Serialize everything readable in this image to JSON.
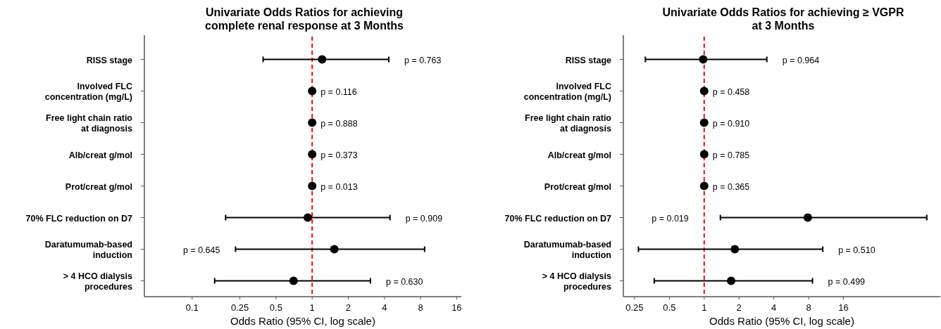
{
  "chart_data": [
    {
      "type": "scatter",
      "orientation": "horizontal",
      "title": "Univariate Odds Ratios for achieving\ncomplete renal response at 3 Months",
      "xlabel": "Odds Ratio (95% CI, log scale)",
      "categories": [
        "RISS stage",
        "Involved FLC\nconcentration (mg/L)",
        "Free light chain ratio\nat diagnosis",
        "Alb/creat g/mol",
        "Prot/creat g/mol",
        "70% FLC reduction on D7",
        "Daratumumab-based\ninduction",
        "> 4 HCO dialysis\nprocedures"
      ],
      "series": [
        {
          "color": "#000000",
          "values": [
            1.21,
            1.0,
            1.0,
            1.0,
            1.0,
            0.92,
            1.53,
            0.7
          ],
          "errors": [
            [
              0.39,
              4.35
            ],
            null,
            null,
            null,
            null,
            [
              0.19,
              4.45
            ],
            [
              0.23,
              8.65
            ],
            [
              0.154,
              3.06
            ]
          ]
        }
      ],
      "marker": "circle",
      "log": "x",
      "grid": false,
      "xlim": [
        0.04,
        17.5
      ],
      "xticks": [
        0.1,
        0.25,
        0.5,
        1,
        2,
        4,
        8,
        16
      ],
      "ref_lines": [
        {
          "axis": "x",
          "value": 1,
          "color": "#ff0000",
          "line_style": "dashed"
        }
      ],
      "annotations": [
        "p = 0.763",
        "p = 0.116",
        "p = 0.888",
        "p = 0.373",
        "p = 0.013",
        "p = 0.909",
        "p = 0.645",
        "p = 0.630"
      ]
    },
    {
      "type": "scatter",
      "orientation": "horizontal",
      "title": "Univariate Odds Ratios for achieving ≥ VGPR\nat 3 Months",
      "xlabel": "Odds Ratio (95% CI, log scale)",
      "categories": [
        "RISS stage",
        "Involved FLC\nconcentration (mg/L)",
        "Free light chain ratio\nat diagnosis",
        "Alb/creat g/mol",
        "Prot/creat g/mol",
        "70% FLC reduction on D7",
        "Daratumumab-based\ninduction",
        "> 4 HCO dialysis\nprocedures"
      ],
      "series": [
        {
          "color": "#000000",
          "values": [
            0.98,
            1.0,
            1.0,
            1.0,
            1.0,
            7.87,
            1.84,
            1.71
          ],
          "errors": [
            [
              0.31,
              3.48
            ],
            null,
            null,
            null,
            null,
            [
              1.38,
              84
            ],
            [
              0.27,
              10.6
            ],
            [
              0.37,
              8.64
            ]
          ]
        }
      ],
      "marker": "circle",
      "log": "x",
      "grid": false,
      "xlim": [
        0.2,
        110
      ],
      "xticks": [
        0.25,
        0.5,
        1,
        2,
        4,
        8,
        16
      ],
      "ref_lines": [
        {
          "axis": "x",
          "value": 1,
          "color": "#ff0000",
          "line_style": "dashed"
        }
      ],
      "annotations": [
        "p = 0.964",
        "p = 0.458",
        "p = 0.910",
        "p = 0.785",
        "p = 0.365",
        "p = 0.019",
        "p = 0.510",
        "p = 0.499"
      ]
    }
  ]
}
